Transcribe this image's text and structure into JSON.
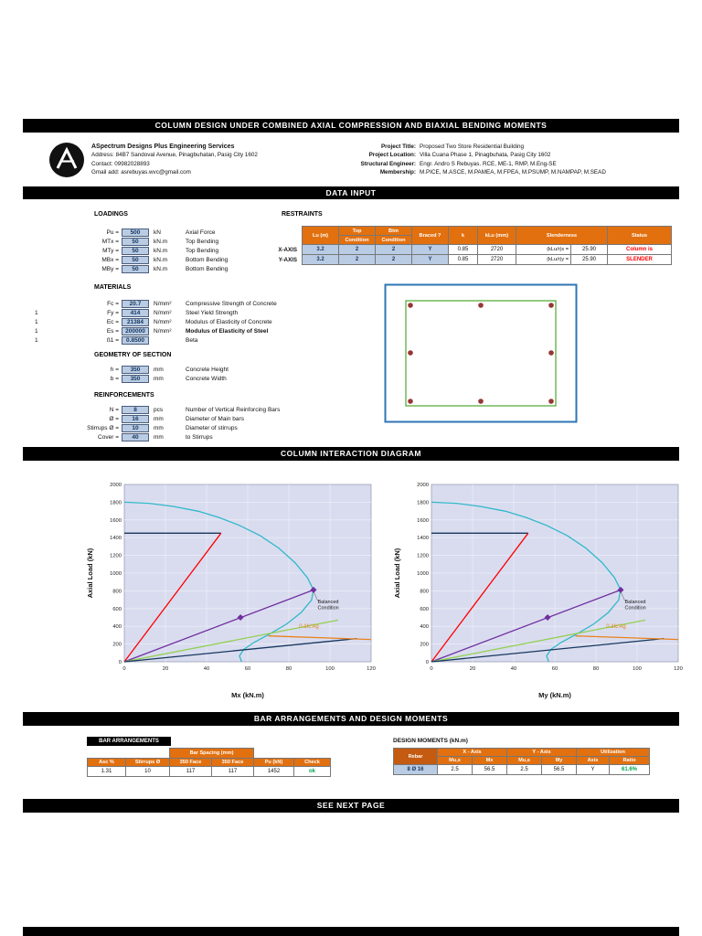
{
  "colors": {
    "accent_orange": "#E2700F",
    "accent_orange_dark": "#C55A11",
    "input_blue": "#B9CCE4",
    "alert_red": "#FF0000",
    "ok_green": "#00A550",
    "navy": "#17375E",
    "bar_black": "#000000"
  },
  "bars": {
    "main_title": "COLUMN DESIGN UNDER COMBINED AXIAL COMPRESSION AND BIAXIAL BENDING MOMENTS",
    "data_input": "DATA INPUT",
    "interaction_diagram": "COLUMN INTERACTION DIAGRAM",
    "bar_and_moments": "BAR ARRANGEMENTS AND DESIGN MOMENTS",
    "see_next_page": "SEE NEXT PAGE"
  },
  "header": {
    "company_name": "ASpectrum Designs Plus Engineering Services",
    "address": "Address: 84B7 Sandoval Avenue, Pinagbuhatan, Pasig City 1602",
    "contact": "Contact: 09982028893",
    "email": "Gmail add: asrebuyas.wvc@gmail.com",
    "project_rows": [
      {
        "label": "Project Title:",
        "value": "Proposed Two Store Residential Building"
      },
      {
        "label": "Project Location:",
        "value": "Villa Cuana Phase 1, Pinagbuhata, Pasig City 1602"
      },
      {
        "label": "Structural Engineer:",
        "value": "Engr. Andro S Rebuyas. RCE, ME-1, RMP, M.Eng-SE"
      },
      {
        "label": "Membership:",
        "value": "M.PICE, M.ASCE, M.PAMEA, M.FPEA, M.PSUMP, M.NAMPAP, M.SEAD"
      }
    ]
  },
  "loadings": {
    "title": "LOADINGS",
    "rows": [
      {
        "label": "Pu =",
        "value": "500",
        "unit": "kN",
        "desc": "Axial Force"
      },
      {
        "label": "MTx =",
        "value": "50",
        "unit": "kN.m",
        "desc": "Top Bending"
      },
      {
        "label": "MTy =",
        "value": "50",
        "unit": "kN.m",
        "desc": "Top Bending"
      },
      {
        "label": "MBx =",
        "value": "50",
        "unit": "kN.m",
        "desc": "Bottom Bending"
      },
      {
        "label": "MBy =",
        "value": "50",
        "unit": "kN.m",
        "desc": "Bottom Bending"
      }
    ]
  },
  "restraints": {
    "title": "RESTRAINTS",
    "row_labels": [
      "X-AXIS",
      "Y-AXIS"
    ],
    "headers": {
      "lu": "Lu (m)",
      "top1": "Top",
      "top2": "Condition",
      "btm1": "Btm",
      "btm2": "Condition",
      "braced": "Braced ?",
      "k": "k",
      "klu": "kLu (mm)",
      "slenderness": "Slenderness",
      "status": "Status"
    },
    "rows": [
      {
        "lu": "3.2",
        "top": "2",
        "btm": "2",
        "braced": "Y",
        "k": "0.85",
        "klu": "2720",
        "slender_label": "(kLu/r)x =",
        "slender_value": "25.90",
        "status": "Column is"
      },
      {
        "lu": "3.2",
        "top": "2",
        "btm": "2",
        "braced": "Y",
        "k": "0.85",
        "klu": "2720",
        "slender_label": "(kLu/r)y =",
        "slender_value": "25.90",
        "status": "SLENDER"
      }
    ]
  },
  "materials": {
    "title": "MATERIALS",
    "rows": [
      {
        "pre": "",
        "label": "Fc =",
        "value": "20.7",
        "unit": "N/mm²",
        "desc": "Compressive Strength of Concrete"
      },
      {
        "pre": "1",
        "label": "Fy =",
        "value": "414",
        "unit": "N/mm²",
        "desc": "Steel Yield Strength"
      },
      {
        "pre": "1",
        "label": "Ec =",
        "value": "21384",
        "unit": "N/mm²",
        "desc": "Modulus of Elasticity of Concrete"
      },
      {
        "pre": "1",
        "label": "Es =",
        "value": "200000",
        "unit": "N/mm²",
        "desc": "Modulus of Elasticity of Steel"
      },
      {
        "pre": "1",
        "label": "ß1 =",
        "value": "0.8500",
        "unit": "",
        "desc": "Beta"
      }
    ]
  },
  "geometry": {
    "title": "GEOMETRY OF SECTION",
    "rows": [
      {
        "label": "h =",
        "value": "350",
        "unit": "mm",
        "desc": "Concrete Height"
      },
      {
        "label": "b =",
        "value": "350",
        "unit": "mm",
        "desc": "Concrete Width"
      }
    ]
  },
  "reinforcements": {
    "title": "REINFORCEMENTS",
    "rows": [
      {
        "label": "N =",
        "value": "8",
        "unit": "pcs",
        "desc": "Number of Vertical Reinforcing Bars"
      },
      {
        "label": "Ø =",
        "value": "16",
        "unit": "mm",
        "desc": "Diameter of Main bars"
      },
      {
        "label": "Stirrups Ø =",
        "value": "10",
        "unit": "mm",
        "desc": "Diameter of stirrups"
      },
      {
        "label": "Cover =",
        "value": "40",
        "unit": "mm",
        "desc": "to Stirrups"
      }
    ]
  },
  "bar_arrangements": {
    "title": "BAR ARRANGEMENTS",
    "spacing_header": "Bar Spacing (mm)",
    "headers": [
      "Asc %",
      "Stirrups Ø",
      "350 Face",
      "350 Face",
      "Pu (kN)",
      "Check"
    ],
    "values": [
      "1.31",
      "10",
      "117",
      "117",
      "1452",
      "ok"
    ]
  },
  "design_moments": {
    "title": "DESIGN MOMENTS (kN.m)",
    "headers": {
      "rebar": "Rebar",
      "x_axis": "X - Axis",
      "y_axis": "Y - Axis",
      "utilization": "Utilization",
      "sub": [
        "Mu,s",
        "Mx",
        "Mu,s",
        "My",
        "Axis",
        "Ratio"
      ]
    },
    "row": {
      "rebar": "8 Ø 16",
      "x_mus": "2.5",
      "x_m": "56.5",
      "y_mus": "2.5",
      "y_m": "56.5",
      "axis": "Y",
      "ratio": "61.6%"
    }
  },
  "chart_data": [
    {
      "type": "line",
      "title": "",
      "xlabel": "Mx (kN.m)",
      "ylabel": "Axial Load (kN)",
      "xlim": [
        0,
        120
      ],
      "ylim": [
        0,
        2000
      ],
      "xticks": [
        0,
        20,
        40,
        60,
        80,
        100,
        120
      ],
      "yticks": [
        0,
        200,
        400,
        600,
        800,
        1000,
        1200,
        1400,
        1600,
        1800,
        2000
      ],
      "grid": true,
      "legend": "none",
      "plot_bg": "#D9DCEF",
      "grid_color": "#f0f1fa",
      "series": [
        {
          "name": "capacity-curve",
          "color": "#31B8C9",
          "points": [
            [
              0,
              1800
            ],
            [
              12,
              1788
            ],
            [
              24,
              1752
            ],
            [
              36,
              1698
            ],
            [
              46,
              1628
            ],
            [
              56,
              1538
            ],
            [
              66,
              1424
            ],
            [
              75,
              1284
            ],
            [
              83,
              1118
            ],
            [
              89,
              948
            ],
            [
              92,
              810
            ],
            [
              91,
              696
            ],
            [
              86,
              556
            ],
            [
              79,
              428
            ],
            [
              71,
              318
            ],
            [
              63,
              218
            ],
            [
              58,
              138
            ],
            [
              56,
              66
            ],
            [
              57,
              0
            ]
          ]
        },
        {
          "name": "pnmax-cutoff",
          "color": "#17375E",
          "points": [
            [
              0,
              1450
            ],
            [
              47,
              1450
            ]
          ]
        },
        {
          "name": "load-line-red",
          "color": "#FF0000",
          "points": [
            [
              0,
              0
            ],
            [
              47,
              1450
            ]
          ]
        },
        {
          "name": "load-line-purple",
          "color": "#7030A0",
          "points": [
            [
              0,
              0
            ],
            [
              92,
              810
            ]
          ],
          "markers": [
            [
              56.5,
              500
            ],
            [
              92,
              810
            ]
          ]
        },
        {
          "name": "load-line-green",
          "color": "#92D050",
          "points": [
            [
              0,
              0
            ],
            [
              104,
              470
            ]
          ]
        },
        {
          "name": "load-line-navy",
          "color": "#17375E",
          "points": [
            [
              0,
              0
            ],
            [
              113,
              262
            ]
          ]
        },
        {
          "name": "min-axial-line",
          "color": "#E8821E",
          "points": [
            [
              70,
              292
            ],
            [
              120,
              252
            ]
          ]
        }
      ],
      "annotations": [
        {
          "lines": [
            "Balanced",
            "Condition"
          ],
          "x": 94,
          "y": 660,
          "color": "#1a1a1a",
          "size": 5.5,
          "leader": [
            [
              92,
              795
            ],
            [
              94,
              690
            ]
          ]
        },
        {
          "lines": [
            "0.1fc'Ag"
          ],
          "x": 85,
          "y": 380,
          "color": "#E8821E",
          "size": 6
        }
      ]
    },
    {
      "type": "line",
      "title": "",
      "xlabel": "My (kN.m)",
      "ylabel": "Axial Load (kN)",
      "xlim": [
        0,
        120
      ],
      "ylim": [
        0,
        2000
      ],
      "xticks": [
        0,
        20,
        40,
        60,
        80,
        100,
        120
      ],
      "yticks": [
        0,
        200,
        400,
        600,
        800,
        1000,
        1200,
        1400,
        1600,
        1800,
        2000
      ],
      "grid": true,
      "legend": "none",
      "plot_bg": "#D9DCEF",
      "grid_color": "#f0f1fa",
      "series": [
        {
          "name": "capacity-curve",
          "color": "#31B8C9",
          "points": [
            [
              0,
              1800
            ],
            [
              12,
              1788
            ],
            [
              24,
              1752
            ],
            [
              36,
              1698
            ],
            [
              46,
              1628
            ],
            [
              56,
              1538
            ],
            [
              66,
              1424
            ],
            [
              75,
              1284
            ],
            [
              83,
              1118
            ],
            [
              89,
              948
            ],
            [
              92,
              810
            ],
            [
              91,
              696
            ],
            [
              86,
              556
            ],
            [
              79,
              428
            ],
            [
              71,
              318
            ],
            [
              63,
              218
            ],
            [
              58,
              138
            ],
            [
              56,
              66
            ],
            [
              57,
              0
            ]
          ]
        },
        {
          "name": "pnmax-cutoff",
          "color": "#17375E",
          "points": [
            [
              0,
              1450
            ],
            [
              47,
              1450
            ]
          ]
        },
        {
          "name": "load-line-red",
          "color": "#FF0000",
          "points": [
            [
              0,
              0
            ],
            [
              47,
              1450
            ]
          ]
        },
        {
          "name": "load-line-purple",
          "color": "#7030A0",
          "points": [
            [
              0,
              0
            ],
            [
              92,
              810
            ]
          ],
          "markers": [
            [
              56.5,
              500
            ],
            [
              92,
              810
            ]
          ]
        },
        {
          "name": "load-line-green",
          "color": "#92D050",
          "points": [
            [
              0,
              0
            ],
            [
              104,
              470
            ]
          ]
        },
        {
          "name": "load-line-navy",
          "color": "#17375E",
          "points": [
            [
              0,
              0
            ],
            [
              113,
              262
            ]
          ]
        },
        {
          "name": "min-axial-line",
          "color": "#E8821E",
          "points": [
            [
              70,
              292
            ],
            [
              120,
              252
            ]
          ]
        }
      ],
      "annotations": [
        {
          "lines": [
            "Balanced",
            "Condition"
          ],
          "x": 94,
          "y": 660,
          "color": "#1a1a1a",
          "size": 5.5,
          "leader": [
            [
              92,
              795
            ],
            [
              94,
              690
            ]
          ]
        },
        {
          "lines": [
            "0.1fc'Ag"
          ],
          "x": 85,
          "y": 380,
          "color": "#E8821E",
          "size": 6
        }
      ]
    }
  ]
}
